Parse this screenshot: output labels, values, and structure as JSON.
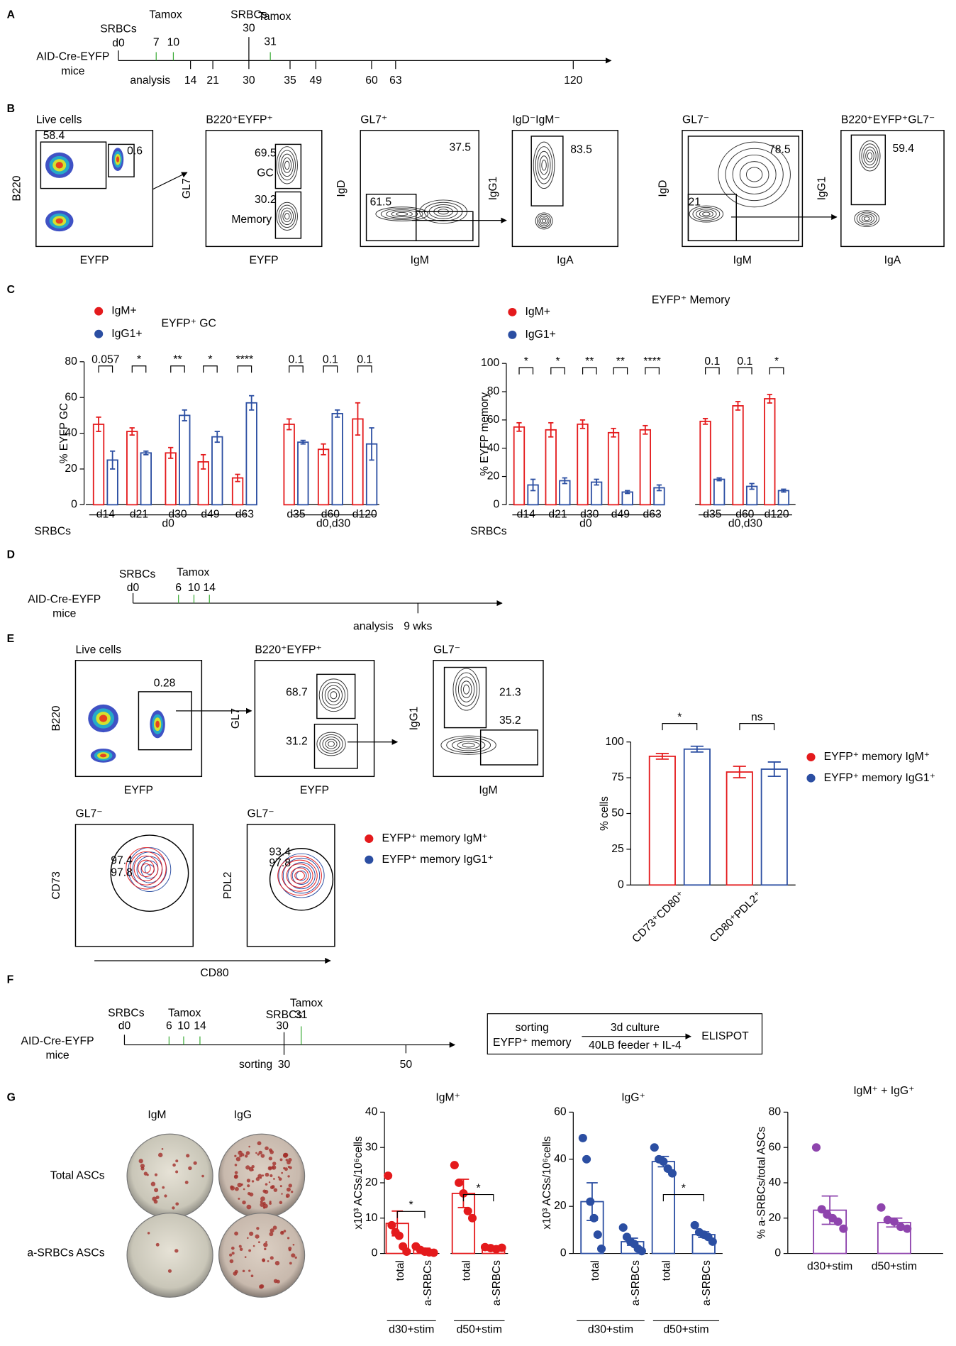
{
  "panel_labels": [
    "A",
    "B",
    "C",
    "D",
    "E",
    "F",
    "G"
  ],
  "panel_A": {
    "mouse": [
      "AID-Cre-EYFP",
      "mice"
    ],
    "top": [
      "SRBCs",
      "d0",
      "Tamox",
      "7",
      "10",
      "SRBCs",
      "30",
      "Tamox",
      "31"
    ],
    "bottom": [
      "analysis",
      "14",
      "21",
      "30",
      "35",
      "49",
      "60",
      "63",
      "120"
    ]
  },
  "panel_B": {
    "plots": [
      {
        "title": "Live cells",
        "x": "EYFP",
        "y": "B220",
        "gates": [
          "58.4",
          "0.6"
        ]
      },
      {
        "title": "B220⁺EYFP⁺",
        "x": "EYFP",
        "y": "GL7",
        "gates": [
          "69.5",
          "30.2"
        ],
        "gate_names": [
          "GC",
          "Memory"
        ]
      },
      {
        "title": "GL7⁺",
        "x": "IgM",
        "y": "IgD",
        "gates": [
          "37.5",
          "61.5"
        ]
      },
      {
        "title": "IgD⁻IgM⁻",
        "x": "IgA",
        "y": "IgG1",
        "gates": [
          "83.5"
        ]
      },
      {
        "title": "GL7⁻",
        "x": "IgM",
        "y": "IgD",
        "gates": [
          "78.5",
          "21"
        ]
      },
      {
        "title": "B220⁺EYFP⁺GL7⁻",
        "x": "IgA",
        "y": "IgG1",
        "gates": [
          "59.4"
        ]
      }
    ]
  },
  "panel_D": {
    "mouse": [
      "AID-Cre-EYFP",
      "mice"
    ],
    "top": [
      "SRBCs",
      "d0",
      "Tamox",
      "6",
      "10",
      "14"
    ],
    "bottom": [
      "analysis",
      "9 wks"
    ]
  },
  "panel_E": {
    "plots": [
      {
        "title": "Live cells",
        "x": "EYFP",
        "y": "B220",
        "gates": [
          "0.28"
        ]
      },
      {
        "title": "B220⁺EYFP⁺",
        "x": "EYFP",
        "y": "GL7",
        "gates": [
          "68.7",
          "31.2"
        ]
      },
      {
        "title": "GL7⁻",
        "x": "IgM",
        "y": "IgG1",
        "gates": [
          "21.3",
          "35.2"
        ]
      },
      {
        "title": "GL7⁻",
        "y": "CD73",
        "gates": [
          "97.4",
          "97.8"
        ]
      },
      {
        "title": "GL7⁻",
        "y": "PDL2",
        "gates": [
          "93.4",
          "97.8"
        ]
      }
    ],
    "overlay_x": "CD80",
    "legend": [
      "EYFP⁺ memory IgM⁺",
      "EYFP⁺ memory IgG1⁺"
    ]
  },
  "panel_F": {
    "mouse": [
      "AID-Cre-EYFP",
      "mice"
    ],
    "top": [
      "SRBCs",
      "d0",
      "Tamox",
      "6",
      "10",
      "14",
      "SRBCs",
      "30",
      "Tamox",
      "31"
    ],
    "bottom": [
      "sorting",
      "30",
      "50"
    ],
    "box": [
      "sorting",
      "EYFP⁺ memory",
      "3d culture",
      "40LB feeder + IL-4",
      "ELISPOT"
    ]
  },
  "panel_G": {
    "columns": [
      "IgM",
      "IgG"
    ],
    "rows": [
      "Total ASCs",
      "a-SRBCs ASCs"
    ]
  },
  "chart_data": [
    {
      "type": "bar",
      "title": "EYFP⁺ GC",
      "ylabel": "% EYFP GC",
      "row_label": "SRBCs",
      "categories": [
        "d14",
        "d21",
        "d30",
        "d49",
        "d63",
        "d35",
        "d60",
        "d120"
      ],
      "group_labels": [
        "d0",
        "d0,d30"
      ],
      "series": [
        {
          "name": "IgM+",
          "color": "#e41a1c",
          "values": [
            45,
            41,
            29,
            24,
            15,
            45,
            31,
            48
          ],
          "errors": [
            4,
            2,
            3,
            4,
            2,
            3,
            3,
            9
          ]
        },
        {
          "name": "IgG1+",
          "color": "#2b4ea2",
          "values": [
            25,
            29,
            50,
            38,
            57,
            35,
            51,
            34
          ],
          "errors": [
            5,
            1,
            3,
            3,
            4,
            1,
            2,
            9
          ]
        }
      ],
      "significance": [
        "0.057",
        "*",
        "**",
        "*",
        "****",
        "0.1",
        "0.1",
        "0.1"
      ],
      "ylim": [
        0,
        80
      ],
      "yticks": [
        0,
        20,
        40,
        60,
        80
      ],
      "legend": "upper left"
    },
    {
      "type": "bar",
      "title": "EYFP⁺ Memory",
      "ylabel": "% EYFP memory",
      "row_label": "SRBCs",
      "categories": [
        "d14",
        "d21",
        "d30",
        "d49",
        "d63",
        "d35",
        "d60",
        "d120"
      ],
      "group_labels": [
        "d0",
        "d0,d30"
      ],
      "series": [
        {
          "name": "IgM+",
          "color": "#e41a1c",
          "values": [
            55,
            53,
            57,
            51,
            53,
            59,
            70,
            75
          ],
          "errors": [
            3,
            5,
            3,
            3,
            3,
            2,
            3,
            3
          ]
        },
        {
          "name": "IgG1+",
          "color": "#2b4ea2",
          "values": [
            14,
            17,
            16,
            9,
            12,
            18,
            13,
            10
          ],
          "errors": [
            4,
            2,
            2,
            1,
            2,
            1,
            2,
            1
          ]
        }
      ],
      "significance": [
        "*",
        "*",
        "**",
        "**",
        "****",
        "0.1",
        "0.1",
        "*"
      ],
      "ylim": [
        0,
        100
      ],
      "yticks": [
        0,
        20,
        40,
        60,
        80,
        100
      ],
      "legend": "upper left"
    },
    {
      "type": "bar",
      "ylabel": "% cells",
      "categories": [
        "CD73⁺CD80⁺",
        "CD80⁺PDL2⁺"
      ],
      "series": [
        {
          "name": "EYFP⁺ memory IgM⁺",
          "color": "#e41a1c",
          "values": [
            90,
            79
          ],
          "errors": [
            2,
            4
          ]
        },
        {
          "name": "EYFP⁺ memory IgG1⁺",
          "color": "#2b4ea2",
          "values": [
            95,
            81
          ],
          "errors": [
            2,
            5
          ]
        }
      ],
      "significance": [
        "*",
        "ns"
      ],
      "ylim": [
        0,
        100
      ],
      "yticks": [
        0,
        25,
        50,
        75,
        100
      ],
      "legend": "right"
    },
    {
      "type": "bar",
      "title": "IgM⁺",
      "ylabel": "x10³ ACSs/10⁶cells",
      "categories": [
        "total",
        "a-SRBCs",
        "total",
        "a-SRBCs"
      ],
      "group_labels": [
        "d30+stim",
        "d50+stim"
      ],
      "color": "#e41a1c",
      "values": [
        8.5,
        1.0,
        17,
        1.5
      ],
      "errors": [
        3.5,
        0.5,
        4,
        0.2
      ],
      "points": [
        [
          22,
          8,
          6,
          5,
          2,
          0.5
        ],
        [
          2,
          1,
          0.5,
          0.3,
          0.2
        ],
        [
          25,
          20,
          17,
          12,
          10
        ],
        [
          1.8,
          1.5,
          1.2,
          1.6
        ]
      ],
      "significance": [
        "*",
        "*"
      ],
      "ylim": [
        0,
        40
      ],
      "yticks": [
        0,
        10,
        20,
        30,
        40
      ]
    },
    {
      "type": "bar",
      "title": "IgG⁺",
      "ylabel": "x10³ ACSs/10⁶cells",
      "categories": [
        "total",
        "a-SRBCs",
        "total",
        "a-SRBCs"
      ],
      "group_labels": [
        "d30+stim",
        "d50+stim"
      ],
      "color": "#2b4ea2",
      "values": [
        22,
        5,
        39,
        8
      ],
      "errors": [
        8,
        1.5,
        2.2,
        1.2
      ],
      "points": [
        [
          49,
          40,
          22,
          15,
          8,
          2
        ],
        [
          11,
          7,
          5,
          4,
          2,
          1
        ],
        [
          45,
          40,
          39,
          36,
          34
        ],
        [
          12,
          9,
          8,
          7,
          5
        ]
      ],
      "significance": [
        null,
        "*"
      ],
      "ylim": [
        0,
        60
      ],
      "yticks": [
        0,
        20,
        40,
        60
      ]
    },
    {
      "type": "bar",
      "title": "IgM⁺ + IgG⁺",
      "ylabel": "% a-SRBCs/total ASCs",
      "categories": [
        "d30+stim",
        "d50+stim"
      ],
      "color": "#8e44ad",
      "values": [
        24.5,
        17.5
      ],
      "errors": [
        8,
        2.5
      ],
      "points": [
        [
          60,
          25,
          22,
          20,
          18,
          14
        ],
        [
          26,
          19,
          18,
          15,
          14
        ]
      ],
      "ylim": [
        0,
        80
      ],
      "yticks": [
        0,
        20,
        40,
        60,
        80
      ]
    }
  ]
}
